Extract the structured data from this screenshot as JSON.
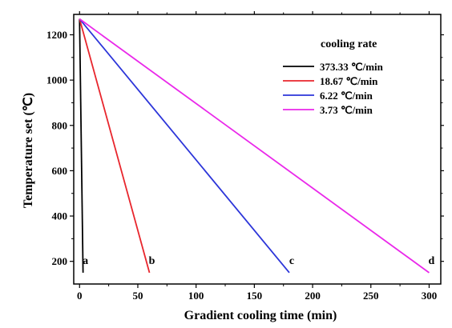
{
  "chart_data": {
    "type": "line",
    "xlabel": "Gradient cooling time (min)",
    "ylabel": "Temperature set (℃)",
    "xlim": [
      -5,
      310
    ],
    "ylim": [
      100,
      1290
    ],
    "xticks": [
      0,
      50,
      100,
      150,
      200,
      250,
      300
    ],
    "yticks": [
      200,
      400,
      600,
      800,
      1000,
      1200
    ],
    "legend_title": "cooling rate",
    "legend_position": "top-right",
    "series": [
      {
        "name": "373.33 ℃/min",
        "color": "#000000",
        "annotation": "a",
        "x": [
          0,
          3.0
        ],
        "y": [
          1270,
          150
        ]
      },
      {
        "name": "18.67 ℃/min",
        "color": "#e8262d",
        "annotation": "b",
        "x": [
          0,
          60
        ],
        "y": [
          1270,
          150
        ]
      },
      {
        "name": "6.22 ℃/min",
        "color": "#2c35d9",
        "annotation": "c",
        "x": [
          0,
          180
        ],
        "y": [
          1270,
          150
        ]
      },
      {
        "name": "3.73 ℃/min",
        "color": "#ea28ea",
        "annotation": "d",
        "x": [
          0,
          300
        ],
        "y": [
          1270,
          150
        ]
      }
    ]
  }
}
